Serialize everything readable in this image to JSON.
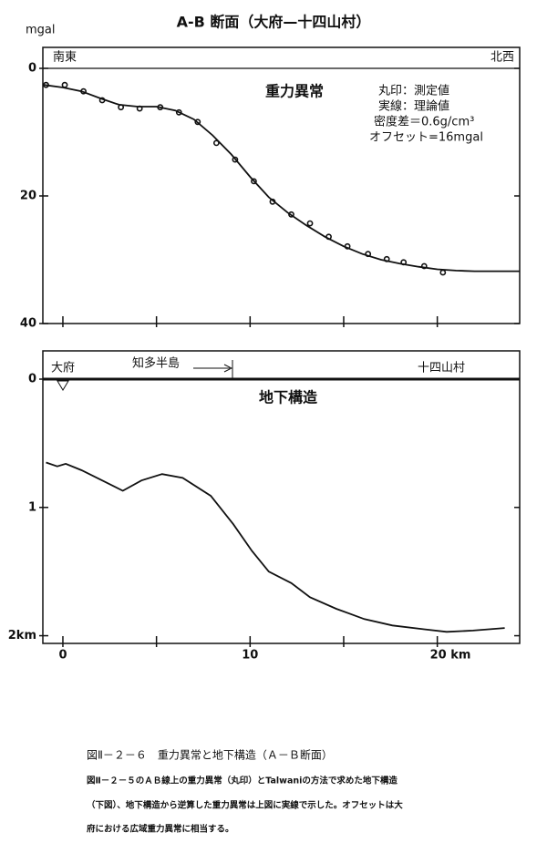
{
  "chart_data": [
    {
      "type": "line",
      "title": "A-B 断面（大府—十四山村）",
      "y_label": "mgal",
      "header_left": "南東",
      "header_right": "北西",
      "label": "重力異常",
      "notes": [
        "丸印：測定値",
        "実線：理論値",
        "密度差＝0.6g/cm³",
        "オフセット=16mgal"
      ],
      "xlim": [
        -1.07,
        24.4
      ],
      "xticks": [
        0,
        5,
        10,
        15,
        20
      ],
      "ylim": [
        0,
        40
      ],
      "yticks": [
        0,
        20,
        40
      ],
      "y_inverted": true,
      "series": [
        {
          "style": "marker",
          "color": "#111",
          "x": [
            -0.9,
            0.1,
            1.1,
            2.1,
            3.1,
            4.1,
            5.2,
            6.2,
            7.2,
            8.2,
            9.2,
            10.2,
            11.2,
            12.2,
            13.2,
            14.2,
            15.2,
            16.3,
            17.3,
            18.2,
            19.3,
            20.3
          ],
          "values": [
            2.6,
            2.6,
            3.6,
            5.0,
            6.1,
            6.3,
            6.1,
            6.9,
            8.4,
            11.7,
            14.3,
            17.7,
            20.9,
            22.9,
            24.3,
            26.4,
            27.9,
            29.1,
            29.9,
            30.4,
            31.0,
            32.0
          ]
        },
        {
          "style": "line",
          "color": "#111",
          "x": [
            -1,
            0,
            1,
            2,
            3,
            4,
            5,
            6,
            7,
            8,
            9,
            10,
            11,
            12,
            13,
            14,
            15,
            16,
            17,
            18,
            19,
            20,
            21,
            22,
            24.4
          ],
          "values": [
            2.6,
            3.0,
            3.6,
            4.7,
            5.7,
            6.0,
            6.0,
            6.6,
            8.0,
            10.5,
            13.5,
            17.0,
            20.2,
            22.6,
            24.6,
            26.4,
            27.9,
            29.1,
            30.0,
            30.6,
            31.1,
            31.5,
            31.7,
            31.8,
            31.8
          ]
        }
      ]
    },
    {
      "type": "line",
      "header_labels": [
        "大府",
        "知多半島",
        "十四山村"
      ],
      "label": "地下構造",
      "xlim": [
        -1.07,
        24.4
      ],
      "xticks": [
        0,
        5,
        10,
        15,
        {
          "value": 20,
          "label": "20 km"
        }
      ],
      "xtick_labels_at": [
        0,
        10,
        20
      ],
      "ylim": [
        0,
        2.06
      ],
      "yticks": [
        0,
        1,
        {
          "value": 2,
          "label": "2km"
        }
      ],
      "y_inverted": true,
      "series": [
        {
          "style": "line",
          "color": "#111",
          "x": [
            -0.9,
            -0.3,
            0.15,
            1.0,
            2.1,
            3.2,
            4.2,
            5.3,
            6.4,
            7.9,
            9.1,
            10.1,
            11.0,
            12.2,
            13.2,
            14.6,
            16.1,
            17.6,
            19.3,
            20.5,
            21.9,
            23.6
          ],
          "values": [
            0.65,
            0.68,
            0.66,
            0.71,
            0.79,
            0.87,
            0.79,
            0.74,
            0.77,
            0.91,
            1.13,
            1.34,
            1.5,
            1.59,
            1.7,
            1.79,
            1.87,
            1.92,
            1.95,
            1.97,
            1.96,
            1.94
          ]
        }
      ]
    }
  ],
  "caption": {
    "title": "図Ⅱ－２－６　重力異常と地下構造（Ａ－Ｂ断面）",
    "lines": [
      "図Ⅱ－２－５のＡＢ線上の重力異常（丸印）とTalwaniの方法で求めた地下構造",
      "（下図）、地下構造から逆算した重力異常は上図に実線で示した。オフセットは大",
      "府における広域重力異常に相当する。"
    ]
  }
}
